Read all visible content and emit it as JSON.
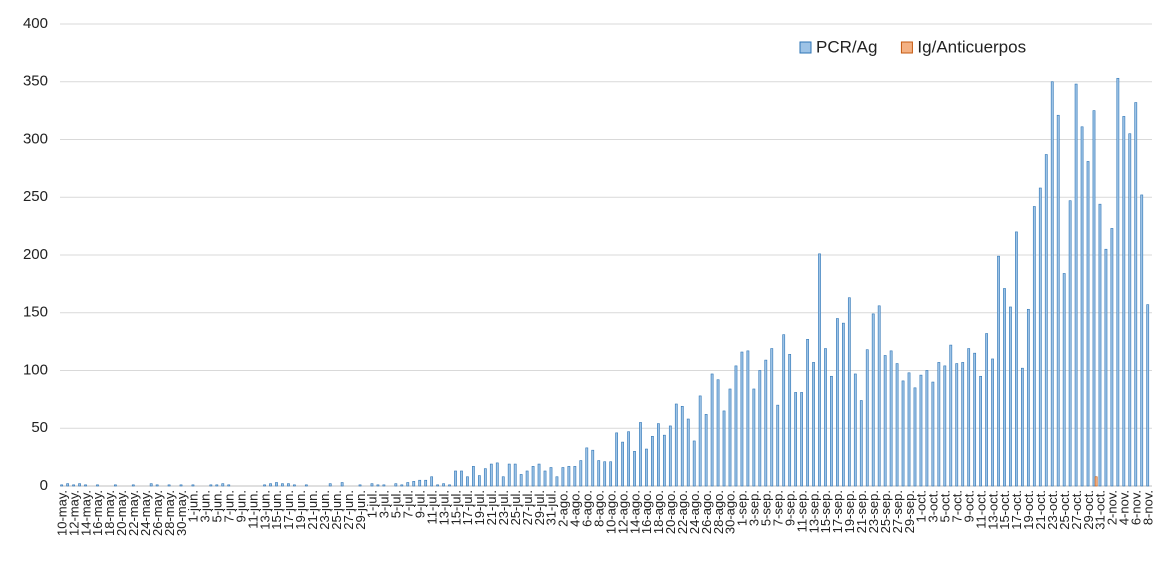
{
  "chart_data": {
    "type": "bar",
    "categories": [
      "10-may.",
      null,
      "12-may.",
      null,
      "14-may.",
      null,
      "16-may.",
      null,
      "18-may.",
      null,
      "20-may.",
      null,
      "22-may.",
      null,
      "24-may.",
      null,
      "26-may.",
      null,
      "28-may.",
      null,
      "30-may.",
      null,
      "1-jun.",
      null,
      "3-jun.",
      null,
      "5-jun.",
      null,
      "7-jun.",
      null,
      "9-jun.",
      null,
      "11-jun.",
      null,
      "13-jun.",
      null,
      "15-jun.",
      null,
      "17-jun.",
      null,
      "19-jun.",
      null,
      "21-jun.",
      null,
      "23-jun.",
      null,
      "25-jun.",
      null,
      "27-jun.",
      null,
      "29-jun.",
      null,
      "1-jul.",
      null,
      "3-jul.",
      null,
      "5-jul.",
      null,
      "7-jul.",
      null,
      "9-jul.",
      null,
      "11-jul.",
      null,
      "13-jul.",
      null,
      "15-jul.",
      null,
      "17-jul.",
      null,
      "19-jul.",
      null,
      "21-jul.",
      null,
      "23-jul.",
      null,
      "25-jul.",
      null,
      "27-jul.",
      null,
      "29-jul.",
      null,
      "31-jul.",
      null,
      "2-ago.",
      null,
      "4-ago.",
      null,
      "6-ago.",
      null,
      "8-ago.",
      null,
      "10-ago.",
      null,
      "12-ago.",
      null,
      "14-ago.",
      null,
      "16-ago.",
      null,
      "18-ago.",
      null,
      "20-ago.",
      null,
      "22-ago.",
      null,
      "24-ago.",
      null,
      "26-ago.",
      null,
      "28-ago.",
      null,
      "30-ago.",
      null,
      "1-sep.",
      null,
      "3-sep.",
      null,
      "5-sep.",
      null,
      "7-sep.",
      null,
      "9-sep.",
      null,
      "11-sep.",
      null,
      "13-sep.",
      null,
      "15-sep.",
      null,
      "17-sep.",
      null,
      "19-sep.",
      null,
      "21-sep.",
      null,
      "23-sep.",
      null,
      "25-sep.",
      null,
      "27-sep.",
      null,
      "29-sep.",
      null,
      "1-oct.",
      null,
      "3-oct.",
      null,
      "5-oct.",
      null,
      "7-oct.",
      null,
      "9-oct.",
      null,
      "11-oct.",
      null,
      "13-oct.",
      null,
      "15-oct.",
      null,
      "17-oct.",
      null,
      "19-oct.",
      null,
      "21-oct.",
      null,
      "23-oct.",
      null,
      "25-oct.",
      null,
      "27-oct.",
      null,
      "29-oct.",
      null,
      "31-oct.",
      null,
      "2-nov.",
      null,
      "4-nov.",
      null,
      "6-nov.",
      null,
      "8-nov."
    ],
    "series": [
      {
        "name": "PCR/Ag",
        "color": "#9dc3e6",
        "stroke": "#2e75b6",
        "values": [
          1,
          2,
          1,
          2,
          1,
          0,
          1,
          0,
          0,
          1,
          0,
          0,
          1,
          0,
          0,
          2,
          1,
          0,
          1,
          0,
          1,
          0,
          1,
          0,
          0,
          1,
          1,
          2,
          1,
          0,
          0,
          0,
          0,
          0,
          1,
          2,
          3,
          2,
          2,
          1,
          0,
          1,
          0,
          0,
          0,
          2,
          0,
          3,
          0,
          0,
          1,
          0,
          2,
          1,
          1,
          0,
          2,
          1,
          3,
          4,
          5,
          5,
          8,
          1,
          2,
          1,
          13,
          13,
          8,
          17,
          9,
          15,
          19,
          20,
          8,
          19,
          19,
          10,
          13,
          17,
          19,
          13,
          16,
          8,
          16,
          17,
          17,
          22,
          33,
          31,
          22,
          21,
          21,
          46,
          38,
          47,
          30,
          55,
          32,
          43,
          54,
          44,
          52,
          71,
          69,
          58,
          39,
          78,
          62,
          97,
          92,
          65,
          84,
          104,
          116,
          117,
          84,
          100,
          109,
          119,
          70,
          131,
          114,
          81,
          81,
          127,
          107,
          201,
          119,
          95,
          145,
          141,
          163,
          97,
          74,
          118,
          149,
          156,
          113,
          117,
          106,
          91,
          98,
          85,
          96,
          100,
          90,
          107,
          104,
          122,
          106,
          107,
          119,
          115,
          95,
          132,
          110,
          199,
          171,
          155,
          220,
          102,
          153,
          242,
          258,
          287,
          350,
          321,
          184,
          247,
          348,
          311,
          281,
          325,
          244,
          205,
          223,
          353,
          320,
          305,
          332,
          252,
          157
        ]
      },
      {
        "name": "Ig/Anticuerpos",
        "color": "#f4b183",
        "stroke": "#c55a11",
        "values": [
          0,
          0,
          0,
          0,
          0,
          0,
          0,
          0,
          0,
          0,
          0,
          0,
          0,
          0,
          0,
          0,
          0,
          0,
          0,
          0,
          0,
          0,
          0,
          0,
          0,
          0,
          0,
          0,
          0,
          0,
          0,
          0,
          0,
          0,
          0,
          0,
          0,
          0,
          0,
          0,
          0,
          0,
          0,
          0,
          0,
          0,
          0,
          0,
          0,
          0,
          0,
          0,
          0,
          0,
          0,
          0,
          0,
          0,
          0,
          0,
          0,
          0,
          0,
          0,
          0,
          0,
          0,
          0,
          0,
          0,
          0,
          0,
          0,
          0,
          0,
          0,
          0,
          0,
          0,
          0,
          0,
          0,
          0,
          0,
          0,
          0,
          0,
          0,
          0,
          0,
          0,
          0,
          0,
          0,
          0,
          0,
          0,
          0,
          0,
          0,
          0,
          0,
          0,
          0,
          0,
          0,
          0,
          0,
          0,
          0,
          0,
          0,
          0,
          0,
          0,
          0,
          0,
          0,
          0,
          0,
          0,
          0,
          0,
          0,
          0,
          0,
          0,
          0,
          0,
          0,
          0,
          0,
          0,
          0,
          0,
          0,
          0,
          0,
          0,
          0,
          0,
          0,
          0,
          0,
          0,
          0,
          0,
          0,
          0,
          0,
          0,
          0,
          0,
          0,
          0,
          0,
          0,
          0,
          0,
          0,
          0,
          0,
          0,
          0,
          0,
          0,
          0,
          0,
          0,
          0,
          0,
          0,
          0,
          8,
          0,
          0,
          0,
          0,
          0,
          0,
          0,
          0,
          0
        ]
      }
    ],
    "ylim": [
      0,
      400
    ],
    "yticks": [
      0,
      50,
      100,
      150,
      200,
      250,
      300,
      350,
      400
    ],
    "grid": true,
    "legend": "upper right"
  }
}
